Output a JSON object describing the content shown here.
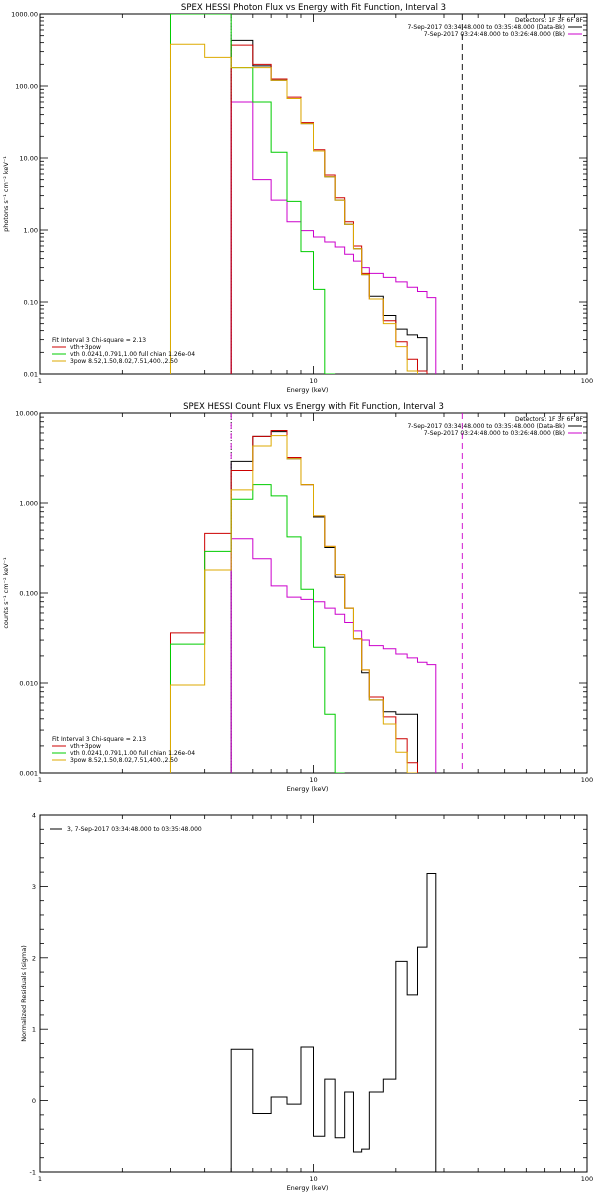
{
  "chart_data": [
    {
      "type": "line",
      "title": "SPEX HESSI Photon Flux vs Energy with Fit Function, Interval 3",
      "xlabel": "Energy (keV)",
      "ylabel": "photons s⁻¹ cm⁻² keV⁻¹",
      "xscale": "log",
      "yscale": "log",
      "xlim": [
        1,
        100
      ],
      "ylim": [
        0.01,
        1000
      ],
      "x_ticks": [
        "1",
        "10",
        "100"
      ],
      "y_ticks": [
        "0.01",
        "0.10",
        "1.00",
        "10.00",
        "100.00",
        "1000.00"
      ],
      "detectors": "Detectors: 1F 3F 6F 8F",
      "time_data": "7-Sep-2017 03:34:48.000 to 03:35:48.000 (Data-Bk)",
      "time_bk": "7-Sep-2017 03:24:48.000 to 03:26:48.000 (Bk)",
      "fit_line": "Fit Interval 3   Chi-square = 2.13",
      "vlines": [
        {
          "x": 5,
          "style": "dotted",
          "color": "#000000"
        },
        {
          "x": 5,
          "style": "dashed",
          "color": "#cc00cc"
        },
        {
          "x": 35,
          "style": "dashed",
          "color": "#000000"
        }
      ],
      "bin_edges": [
        3,
        4,
        5,
        6,
        7,
        8,
        9,
        10,
        11,
        12,
        13,
        14,
        15,
        16,
        18,
        20,
        22,
        24,
        26,
        28,
        30,
        32,
        35
      ],
      "series": [
        {
          "name": "",
          "color": "#000000",
          "x_start": 5,
          "values": [
            430,
            190,
            120,
            67,
            30,
            12.5,
            5.5,
            2.6,
            1.2,
            0.55,
            0.24,
            0.12,
            0.065,
            0.042,
            0.035,
            0.032
          ]
        },
        {
          "name": "",
          "color": "#cc00cc",
          "x_start": 5,
          "values": [
            60,
            5,
            2.6,
            1.3,
            0.98,
            0.8,
            0.68,
            0.58,
            0.46,
            0.37,
            0.3,
            0.25,
            0.22,
            0.19,
            0.16,
            0.14,
            0.115
          ]
        },
        {
          "name": "vth+3pow",
          "color": "#cc0000",
          "x_start": 5,
          "values": [
            370,
            200,
            125,
            70,
            31,
            13,
            5.8,
            2.8,
            1.3,
            0.6,
            0.25,
            0.11,
            0.055,
            0.028,
            0.016,
            0.011
          ]
        },
        {
          "name": "vth 0.0241,0.791,1.00  full chian 1.26e-04",
          "color": "#00cc00",
          "x_start": 3,
          "values": [
            1000,
            1000,
            180,
            60,
            12,
            2.5,
            0.5,
            0.15,
            0.01
          ]
        },
        {
          "name": "3pow 8.52,1.50,8.02,7.51,400.,2.50",
          "color": "#ddaa00",
          "x_start": 3,
          "values": [
            380,
            250,
            180,
            180,
            120,
            67,
            30,
            12.5,
            5.5,
            2.6,
            1.2,
            0.55,
            0.24,
            0.11,
            0.05,
            0.024,
            0.011
          ]
        }
      ]
    },
    {
      "type": "line",
      "title": "SPEX HESSI Count Flux vs Energy with Fit Function, Interval 3",
      "xlabel": "Energy (keV)",
      "ylabel": "counts s⁻¹ cm⁻² keV⁻¹",
      "xscale": "log",
      "yscale": "log",
      "xlim": [
        1,
        100
      ],
      "ylim": [
        0.001,
        10
      ],
      "x_ticks": [
        "1",
        "10",
        "100"
      ],
      "y_ticks": [
        "0.001",
        "0.010",
        "0.100",
        "1.000",
        "10.000"
      ],
      "detectors": "Detectors: 1F 3F 6F 8F",
      "time_data": "7-Sep-2017 03:34:48.000 to 03:35:48.000 (Data-Bk)",
      "time_bk": "7-Sep-2017 03:24:48.000 to 03:26:48.000 (Bk)",
      "fit_line": "Fit Interval 3   Chi-square = 2.13",
      "vlines": [
        {
          "x": 5,
          "style": "dotted",
          "color": "#000000"
        },
        {
          "x": 5,
          "style": "dashed",
          "color": "#cc00cc"
        },
        {
          "x": 35,
          "style": "dashed",
          "color": "#cc00cc"
        }
      ],
      "bin_edges": [
        3,
        4,
        5,
        6,
        7,
        8,
        9,
        10,
        11,
        12,
        13,
        14,
        15,
        16,
        18,
        20,
        22,
        24,
        26,
        28,
        30,
        32,
        35
      ],
      "series": [
        {
          "name": "",
          "color": "#000000",
          "x_start": 5,
          "values": [
            2.9,
            5.5,
            6.2,
            3.1,
            1.6,
            0.7,
            0.32,
            0.15,
            0.068,
            0.031,
            0.013,
            0.0065,
            0.0048,
            0.0045,
            0.0045
          ]
        },
        {
          "name": "",
          "color": "#cc00cc",
          "x_start": 5,
          "values": [
            0.4,
            0.24,
            0.12,
            0.09,
            0.085,
            0.08,
            0.068,
            0.058,
            0.047,
            0.038,
            0.03,
            0.026,
            0.024,
            0.021,
            0.019,
            0.017,
            0.016
          ]
        },
        {
          "name": "vth+3pow",
          "color": "#cc0000",
          "x_start": 3,
          "values": [
            0.036,
            0.46,
            2.3,
            5.5,
            6.4,
            3.2,
            1.6,
            0.72,
            0.33,
            0.16,
            0.068,
            0.031,
            0.014,
            0.007,
            0.0042,
            0.0024,
            0.0013
          ]
        },
        {
          "name": "vth 0.0241,0.791,1.00  full chian 1.26e-04",
          "color": "#00cc00",
          "x_start": 3,
          "values": [
            0.027,
            0.29,
            1.1,
            1.6,
            1.2,
            0.42,
            0.11,
            0.025,
            0.0045,
            0.001
          ]
        },
        {
          "name": "3pow 8.52,1.50,8.02,7.51,400.,2.50",
          "color": "#ddaa00",
          "x_start": 3,
          "values": [
            0.0095,
            0.18,
            1.4,
            4.3,
            5.6,
            3.1,
            1.6,
            0.72,
            0.33,
            0.16,
            0.068,
            0.031,
            0.014,
            0.0065,
            0.0035,
            0.0017,
            0.001
          ]
        }
      ]
    },
    {
      "type": "line",
      "title": "",
      "xlabel": "Energy (keV)",
      "ylabel": "Normalized Residuals (sigma)",
      "xscale": "log",
      "yscale": "linear",
      "xlim": [
        1,
        100
      ],
      "ylim": [
        -1,
        4
      ],
      "x_ticks": [
        "1",
        "10",
        "100"
      ],
      "y_ticks": [
        "-1",
        "0",
        "1",
        "2",
        "3",
        "4"
      ],
      "legend": "3,  7-Sep-2017 03:34:48.000 to 03:35:48.000",
      "bin_edges": [
        3,
        4,
        5,
        6,
        7,
        8,
        9,
        10,
        11,
        12,
        13,
        14,
        15,
        16,
        18,
        20,
        22,
        24,
        26,
        28,
        30,
        32,
        35
      ],
      "series": [
        {
          "name": "",
          "color": "#000000",
          "x_start": 5,
          "values": [
            0.72,
            -0.18,
            0.05,
            -0.05,
            0.75,
            -0.5,
            0.3,
            -0.52,
            0.12,
            -0.72,
            -0.68,
            0.12,
            0.3,
            1.95,
            1.48,
            2.15,
            3.18
          ]
        }
      ]
    }
  ]
}
